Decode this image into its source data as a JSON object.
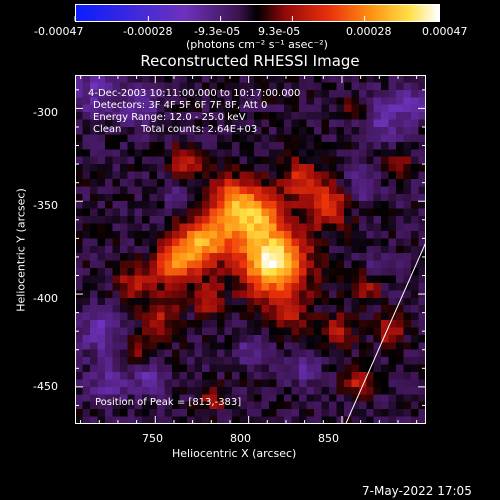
{
  "colorbar": {
    "ticks": [
      "-0.00047",
      "-0.00028",
      "-9.3e-05",
      "9.3e-05",
      "0.00028",
      "0.00047"
    ],
    "units_label": "(photons cm⁻² s⁻¹ asec⁻²)",
    "range": [
      -0.00047,
      0.00047
    ]
  },
  "chart_data": {
    "type": "heatmap",
    "title": "Reconstructed RHESSI Image",
    "xlabel": "Heliocentric X (arcsec)",
    "ylabel": "Heliocentric Y (arcsec)",
    "xlim": [
      707,
      895
    ],
    "ylim": [
      -470,
      -282
    ],
    "xticks": [
      "750",
      "800",
      "850"
    ],
    "yticks": [
      "-300",
      "-350",
      "-400",
      "-450"
    ],
    "peak": [
      813,
      -383
    ],
    "limb_line": [
      [
        852,
        -470
      ],
      [
        895,
        -372
      ]
    ],
    "annotations": {
      "time": "4-Dec-2003 10:11:00.000 to 10:17:00.000",
      "detectors": "Detectors: 3F 4F 5F 6F 7F 8F, Att 0",
      "energy": "Energy Range: 12.0 - 25.0 keV",
      "method": "Clean",
      "counts": "Total counts: 2.64E+03",
      "peak": "Position of Peak = [813,-383]"
    },
    "sources": [
      {
        "x": 813,
        "y": -383,
        "v": 0.00047,
        "s": 12
      },
      {
        "x": 803,
        "y": -358,
        "v": 0.00034,
        "s": 10
      },
      {
        "x": 780,
        "y": -368,
        "v": 0.0003,
        "s": 9
      },
      {
        "x": 768,
        "y": -378,
        "v": 0.00026,
        "s": 8
      },
      {
        "x": 757,
        "y": -386,
        "v": 0.00022,
        "s": 7
      },
      {
        "x": 790,
        "y": -348,
        "v": 0.0002,
        "s": 8
      },
      {
        "x": 842,
        "y": -352,
        "v": 0.00022,
        "s": 8
      },
      {
        "x": 828,
        "y": -338,
        "v": 0.00018,
        "s": 7
      },
      {
        "x": 766,
        "y": -330,
        "v": 0.00018,
        "s": 6
      },
      {
        "x": 738,
        "y": -394,
        "v": 0.00014,
        "s": 6
      },
      {
        "x": 752,
        "y": -412,
        "v": 0.00015,
        "s": 7
      },
      {
        "x": 778,
        "y": -402,
        "v": 0.00016,
        "s": 6
      },
      {
        "x": 822,
        "y": -410,
        "v": 0.00014,
        "s": 7
      },
      {
        "x": 848,
        "y": -420,
        "v": 0.00013,
        "s": 6
      },
      {
        "x": 862,
        "y": -396,
        "v": 0.00013,
        "s": 6
      },
      {
        "x": 876,
        "y": -420,
        "v": 0.00016,
        "s": 5
      },
      {
        "x": 858,
        "y": -448,
        "v": 0.00014,
        "s": 5
      },
      {
        "x": 780,
        "y": -456,
        "v": 0.00013,
        "s": 5
      },
      {
        "x": 742,
        "y": -430,
        "v": 0.0001,
        "s": 5
      },
      {
        "x": 880,
        "y": -330,
        "v": 0.0001,
        "s": 5
      },
      {
        "x": 858,
        "y": -300,
        "v": 9e-05,
        "s": 5
      },
      {
        "x": 718,
        "y": -290,
        "v": -0.00012,
        "s": 10
      },
      {
        "x": 742,
        "y": -300,
        "v": -0.0001,
        "s": 8
      },
      {
        "x": 872,
        "y": -305,
        "v": -0.00013,
        "s": 9
      },
      {
        "x": 888,
        "y": -298,
        "v": -0.00016,
        "s": 5
      },
      {
        "x": 860,
        "y": -342,
        "v": -0.00012,
        "s": 6
      },
      {
        "x": 720,
        "y": -420,
        "v": -0.00013,
        "s": 8
      },
      {
        "x": 725,
        "y": -448,
        "v": -0.00011,
        "s": 8
      },
      {
        "x": 748,
        "y": -445,
        "v": -0.00012,
        "s": 6
      },
      {
        "x": 830,
        "y": -440,
        "v": -9e-05,
        "s": 7
      },
      {
        "x": 870,
        "y": -385,
        "v": -8e-05,
        "s": 6
      },
      {
        "x": 800,
        "y": -430,
        "v": -8e-05,
        "s": 6
      },
      {
        "x": 760,
        "y": -345,
        "v": -7e-05,
        "s": 5
      }
    ]
  },
  "timestamp": "7-May-2022 17:05"
}
